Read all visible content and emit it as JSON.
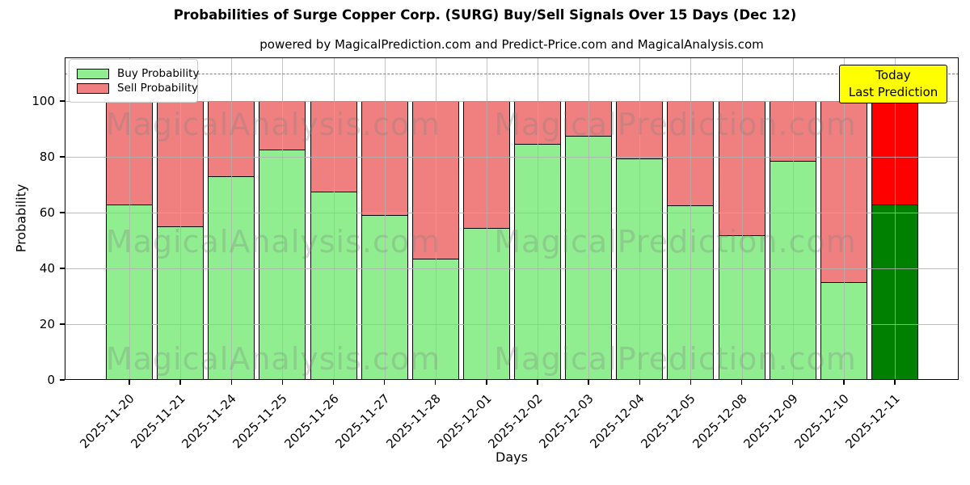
{
  "title": "Probabilities of Surge Copper Corp. (SURG) Buy/Sell Signals Over 15 Days (Dec 12)",
  "subtitle": "powered by MagicalPrediction.com and Predict-Price.com and MagicalAnalysis.com",
  "legend": {
    "items": [
      {
        "label": "Buy Probability",
        "color": "#90ee90"
      },
      {
        "label": "Sell Probability",
        "color": "#f08080"
      }
    ]
  },
  "annotation_box": {
    "line1": "Today",
    "line2": "Last Prediction",
    "bg": "#ffff00",
    "border": "#000000"
  },
  "watermarks": [
    "MagicalAnalysis.com",
    "MagicalPrediction.com"
  ],
  "chart_data": {
    "type": "bar",
    "stacked": true,
    "title": "Probabilities of Surge Copper Corp. (SURG) Buy/Sell Signals Over 15 Days (Dec 12)",
    "xlabel": "Days",
    "ylabel": "Probability",
    "categories": [
      "2025-11-20",
      "2025-11-21",
      "2025-11-24",
      "2025-11-25",
      "2025-11-26",
      "2025-11-27",
      "2025-11-28",
      "2025-12-01",
      "2025-12-02",
      "2025-12-03",
      "2025-12-04",
      "2025-12-05",
      "2025-12-08",
      "2025-12-09",
      "2025-12-10",
      "2025-12-11"
    ],
    "series": [
      {
        "name": "Buy Probability",
        "color": "#90ee90",
        "values": [
          63,
          55,
          73,
          82.5,
          67.5,
          59,
          43.5,
          54.5,
          84.5,
          87.5,
          79.5,
          62.5,
          52,
          78.5,
          35,
          63
        ]
      },
      {
        "name": "Sell Probability",
        "color": "#f08080",
        "values": [
          37,
          45,
          27,
          17.5,
          32.5,
          41,
          56.5,
          45.5,
          15.5,
          12.5,
          20.5,
          37.5,
          48,
          21.5,
          65,
          37
        ]
      }
    ],
    "today_bar": {
      "category": "2025-12-11",
      "buy_color": "#008000",
      "sell_color": "#ff0000"
    },
    "yticks": [
      0,
      20,
      40,
      60,
      80,
      100
    ],
    "ylim": [
      0,
      115
    ],
    "dashed_line_y": 110,
    "grid": true,
    "legend_position": "upper left",
    "bar_edge_color": "#000000"
  }
}
